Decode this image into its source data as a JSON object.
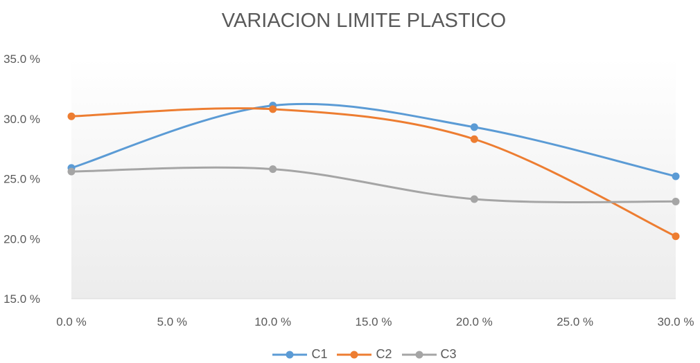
{
  "chart_data": {
    "type": "line",
    "title": "VARIACION LIMITE PLASTICO",
    "xlabel": "",
    "ylabel": "",
    "x": [
      0,
      10,
      20,
      30
    ],
    "xticks": [
      0,
      5,
      10,
      15,
      20,
      25,
      30
    ],
    "xtick_labels": [
      "0.0 %",
      "5.0 %",
      "10.0 %",
      "15.0 %",
      "20.0 %",
      "25.0 %",
      "30.0 %"
    ],
    "xlim": [
      0,
      30
    ],
    "yticks": [
      15,
      20,
      25,
      30,
      35
    ],
    "ytick_labels": [
      "15.0 %",
      "20.0 %",
      "25.0 %",
      "30.0 %",
      "35.0 %"
    ],
    "ylim": [
      15,
      35
    ],
    "grid": false,
    "legend_position": "bottom",
    "smooth": true,
    "series": [
      {
        "name": "C1",
        "values": [
          25.9,
          31.1,
          29.3,
          25.2
        ],
        "color": "#5b9bd5"
      },
      {
        "name": "C2",
        "values": [
          30.2,
          30.8,
          28.3,
          20.2
        ],
        "color": "#ed7d31"
      },
      {
        "name": "C3",
        "values": [
          25.6,
          25.8,
          23.3,
          23.1
        ],
        "color": "#a5a5a5"
      }
    ]
  }
}
